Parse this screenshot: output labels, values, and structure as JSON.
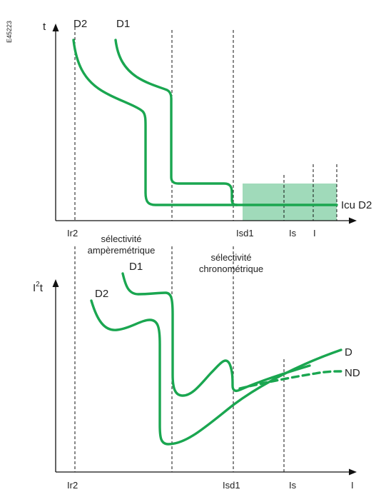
{
  "ref_code": "E45223",
  "colors": {
    "curve": "#1aa650",
    "zone": "#8fd4ae",
    "axis": "#111111"
  },
  "top": {
    "y_axis": "t",
    "curve_labels": {
      "d1": "D1",
      "d2": "D2"
    },
    "icu_label": "Icu D2",
    "x_ticks": {
      "ir2": "Ir2",
      "isd1": "Isd1",
      "is": "Is",
      "i": "I"
    }
  },
  "zones": {
    "amp_line1": "sélectivité",
    "amp_line2": "ampèremétrique",
    "chrono_line1": "sélectivité",
    "chrono_line2": "chronométrique"
  },
  "bottom": {
    "y_axis_base": "I",
    "y_axis_sup": "2",
    "y_axis_tail": "t",
    "curve_labels": {
      "d1": "D1",
      "d2": "D2",
      "d": "D",
      "nd": "ND"
    },
    "x_ticks": {
      "ir2": "Ir2",
      "isd1": "Isd1",
      "is": "Is",
      "i": "I"
    }
  }
}
